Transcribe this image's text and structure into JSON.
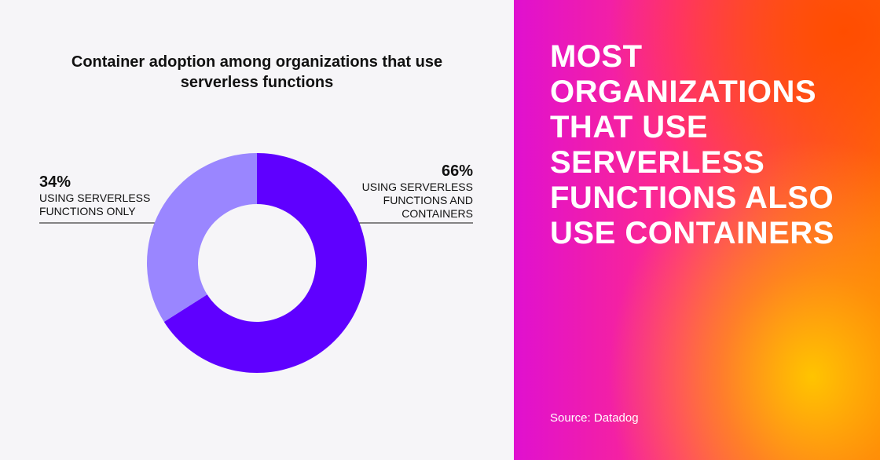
{
  "chart_data": {
    "type": "pie",
    "title": "Container adoption among organizations that use serverless functions",
    "categories": [
      "Using serverless functions and containers",
      "Using serverless functions only"
    ],
    "values": [
      66,
      34
    ],
    "value_labels": [
      "66%",
      "34%"
    ],
    "colors": [
      "#5f00ff",
      "#9a86ff"
    ],
    "donut": true
  },
  "headline": "MOST ORGANIZATIONS THAT USE SERVERLESS FUNCTIONS ALSO USE CONTAINERS",
  "source": "Source: Datadog"
}
